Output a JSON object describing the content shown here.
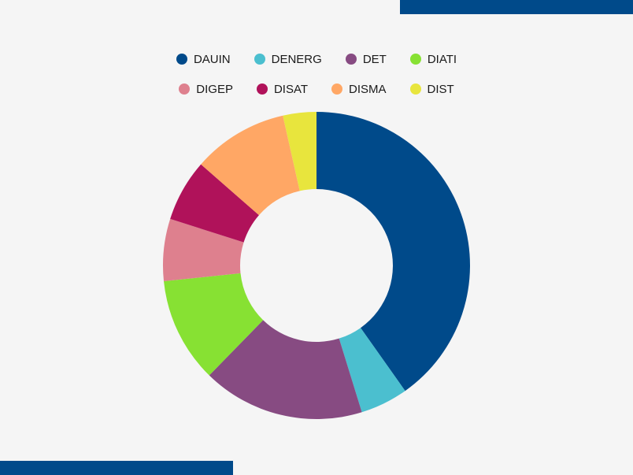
{
  "chart_data": {
    "type": "pie",
    "variant": "donut",
    "legend_position": "top",
    "categories": [
      "DAUIN",
      "DENERG",
      "DET",
      "DIATI",
      "DIGEP",
      "DISAT",
      "DISMA",
      "DIST"
    ],
    "values": [
      40,
      5,
      17,
      11,
      6.5,
      6.5,
      10,
      3.5
    ],
    "colors": [
      "#004a8a",
      "#4bbfcf",
      "#874b82",
      "#87e133",
      "#de808e",
      "#b0125a",
      "#ffa765",
      "#e8e53d"
    ]
  },
  "decor": {
    "accent_color": "#004a8a"
  }
}
